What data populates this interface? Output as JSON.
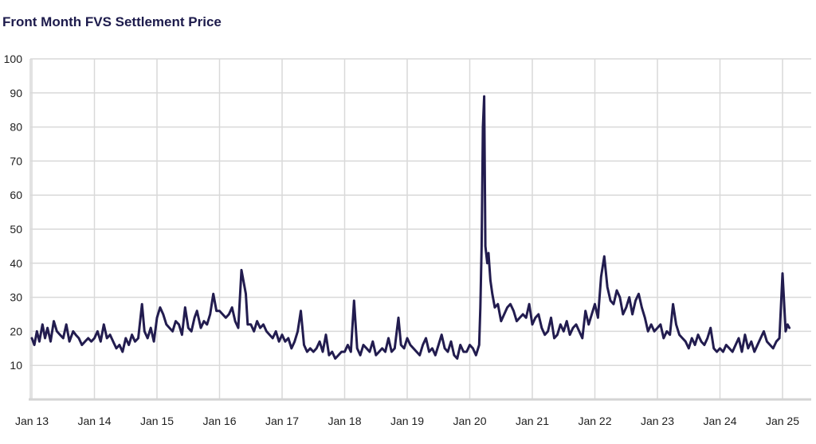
{
  "chart_data": {
    "type": "line",
    "title": "Front Month FVS Settlement Price",
    "xlabel": "",
    "ylabel": "",
    "ylim": [
      0,
      100
    ],
    "y_ticks": [
      "",
      "10",
      "20",
      "30",
      "40",
      "50",
      "60",
      "70",
      "80",
      "90",
      "100"
    ],
    "x_ticks": [
      "Jan 13",
      "Jan 14",
      "Jan 15",
      "Jan 16",
      "Jan 17",
      "Jan 18",
      "Jan 19",
      "Jan 20",
      "Jan 21",
      "Jan 22",
      "Jan 23",
      "Jan 24",
      "Jan 25"
    ],
    "grid": true,
    "line_color": "#221c4f",
    "series": [
      {
        "x": [
          2013.0,
          2013.04,
          2013.08,
          2013.12,
          2013.17,
          2013.21,
          2013.25,
          2013.3,
          2013.35,
          2013.4,
          2013.45,
          2013.5,
          2013.55,
          2013.6,
          2013.66,
          2013.7,
          2013.75,
          2013.8,
          2013.85,
          2013.9,
          2013.95,
          2014.0,
          2014.05,
          2014.1,
          2014.15,
          2014.2,
          2014.25,
          2014.3,
          2014.35,
          2014.4,
          2014.45,
          2014.5,
          2014.55,
          2014.6,
          2014.65,
          2014.7,
          2014.76,
          2014.8,
          2014.85,
          2014.9,
          2014.95,
          2015.0,
          2015.05,
          2015.1,
          2015.15,
          2015.2,
          2015.25,
          2015.3,
          2015.35,
          2015.4,
          2015.45,
          2015.5,
          2015.55,
          2015.6,
          2015.64,
          2015.7,
          2015.75,
          2015.8,
          2015.85,
          2015.9,
          2015.95,
          2016.0,
          2016.05,
          2016.1,
          2016.15,
          2016.2,
          2016.25,
          2016.3,
          2016.35,
          2016.42,
          2016.45,
          2016.5,
          2016.55,
          2016.6,
          2016.65,
          2016.7,
          2016.75,
          2016.8,
          2016.85,
          2016.9,
          2016.95,
          2017.0,
          2017.05,
          2017.1,
          2017.15,
          2017.2,
          2017.25,
          2017.3,
          2017.35,
          2017.4,
          2017.45,
          2017.5,
          2017.55,
          2017.6,
          2017.65,
          2017.7,
          2017.75,
          2017.8,
          2017.85,
          2017.9,
          2017.95,
          2018.0,
          2018.05,
          2018.1,
          2018.15,
          2018.2,
          2018.25,
          2018.3,
          2018.35,
          2018.4,
          2018.45,
          2018.5,
          2018.55,
          2018.6,
          2018.65,
          2018.7,
          2018.75,
          2018.8,
          2018.86,
          2018.9,
          2018.95,
          2019.0,
          2019.05,
          2019.1,
          2019.15,
          2019.2,
          2019.25,
          2019.3,
          2019.35,
          2019.4,
          2019.45,
          2019.5,
          2019.55,
          2019.6,
          2019.65,
          2019.7,
          2019.75,
          2019.8,
          2019.85,
          2019.9,
          2019.95,
          2020.0,
          2020.05,
          2020.1,
          2020.15,
          2020.17,
          2020.19,
          2020.21,
          2020.23,
          2020.25,
          2020.28,
          2020.3,
          2020.33,
          2020.36,
          2020.4,
          2020.45,
          2020.5,
          2020.55,
          2020.6,
          2020.65,
          2020.7,
          2020.75,
          2020.8,
          2020.85,
          2020.9,
          2020.95,
          2021.0,
          2021.05,
          2021.1,
          2021.15,
          2021.2,
          2021.25,
          2021.3,
          2021.35,
          2021.4,
          2021.45,
          2021.5,
          2021.55,
          2021.6,
          2021.65,
          2021.7,
          2021.75,
          2021.8,
          2021.85,
          2021.9,
          2021.95,
          2022.0,
          2022.05,
          2022.1,
          2022.15,
          2022.2,
          2022.25,
          2022.3,
          2022.35,
          2022.4,
          2022.45,
          2022.5,
          2022.55,
          2022.6,
          2022.65,
          2022.7,
          2022.75,
          2022.8,
          2022.85,
          2022.9,
          2022.95,
          2023.0,
          2023.05,
          2023.1,
          2023.15,
          2023.2,
          2023.25,
          2023.3,
          2023.35,
          2023.4,
          2023.45,
          2023.5,
          2023.55,
          2023.6,
          2023.65,
          2023.7,
          2023.75,
          2023.8,
          2023.85,
          2023.9,
          2023.95,
          2024.0,
          2024.05,
          2024.1,
          2024.15,
          2024.2,
          2024.25,
          2024.3,
          2024.35,
          2024.4,
          2024.45,
          2024.5,
          2024.55,
          2024.6,
          2024.65,
          2024.7,
          2024.75,
          2024.8,
          2024.85,
          2024.9,
          2024.95,
          2025.0,
          2025.05,
          2025.08,
          2025.11
        ],
        "y": [
          18,
          16,
          20,
          17,
          22,
          18,
          21,
          17,
          23,
          20,
          19,
          18,
          22,
          17,
          20,
          19,
          18,
          16,
          17,
          18,
          17,
          18,
          20,
          17,
          22,
          18,
          19,
          17,
          15,
          16,
          14,
          18,
          16,
          19,
          17,
          18,
          28,
          20,
          18,
          21,
          17,
          24,
          27,
          25,
          22,
          21,
          20,
          23,
          22,
          19,
          27,
          21,
          20,
          24,
          26,
          21,
          23,
          22,
          25,
          31,
          26,
          26,
          25,
          24,
          25,
          27,
          23,
          21,
          38,
          31,
          22,
          22,
          20,
          23,
          21,
          22,
          20,
          19,
          18,
          20,
          17,
          19,
          17,
          18,
          15,
          17,
          20,
          26,
          16,
          14,
          15,
          14,
          15,
          17,
          14,
          19,
          13,
          14,
          12,
          13,
          14,
          14,
          16,
          14,
          29,
          15,
          13,
          16,
          15,
          14,
          17,
          13,
          14,
          15,
          14,
          18,
          14,
          15,
          24,
          16,
          15,
          18,
          16,
          15,
          14,
          13,
          16,
          18,
          14,
          15,
          13,
          16,
          19,
          15,
          14,
          17,
          13,
          12,
          16,
          14,
          14,
          16,
          15,
          13,
          16,
          27,
          45,
          80,
          89,
          45,
          40,
          43,
          35,
          31,
          27,
          28,
          23,
          25,
          27,
          28,
          26,
          23,
          24,
          25,
          24,
          28,
          22,
          24,
          25,
          21,
          19,
          20,
          24,
          18,
          19,
          22,
          20,
          23,
          19,
          21,
          22,
          20,
          18,
          26,
          22,
          25,
          28,
          24,
          36,
          42,
          33,
          29,
          28,
          32,
          30,
          25,
          27,
          30,
          25,
          29,
          31,
          27,
          24,
          20,
          22,
          20,
          21,
          22,
          18,
          20,
          19,
          28,
          22,
          19,
          18,
          17,
          15,
          18,
          16,
          19,
          17,
          16,
          18,
          21,
          15,
          14,
          15,
          14,
          16,
          15,
          14,
          16,
          18,
          14,
          19,
          15,
          17,
          14,
          16,
          18,
          20,
          17,
          16,
          15,
          17,
          18,
          37,
          20,
          22,
          21
        ]
      }
    ]
  }
}
